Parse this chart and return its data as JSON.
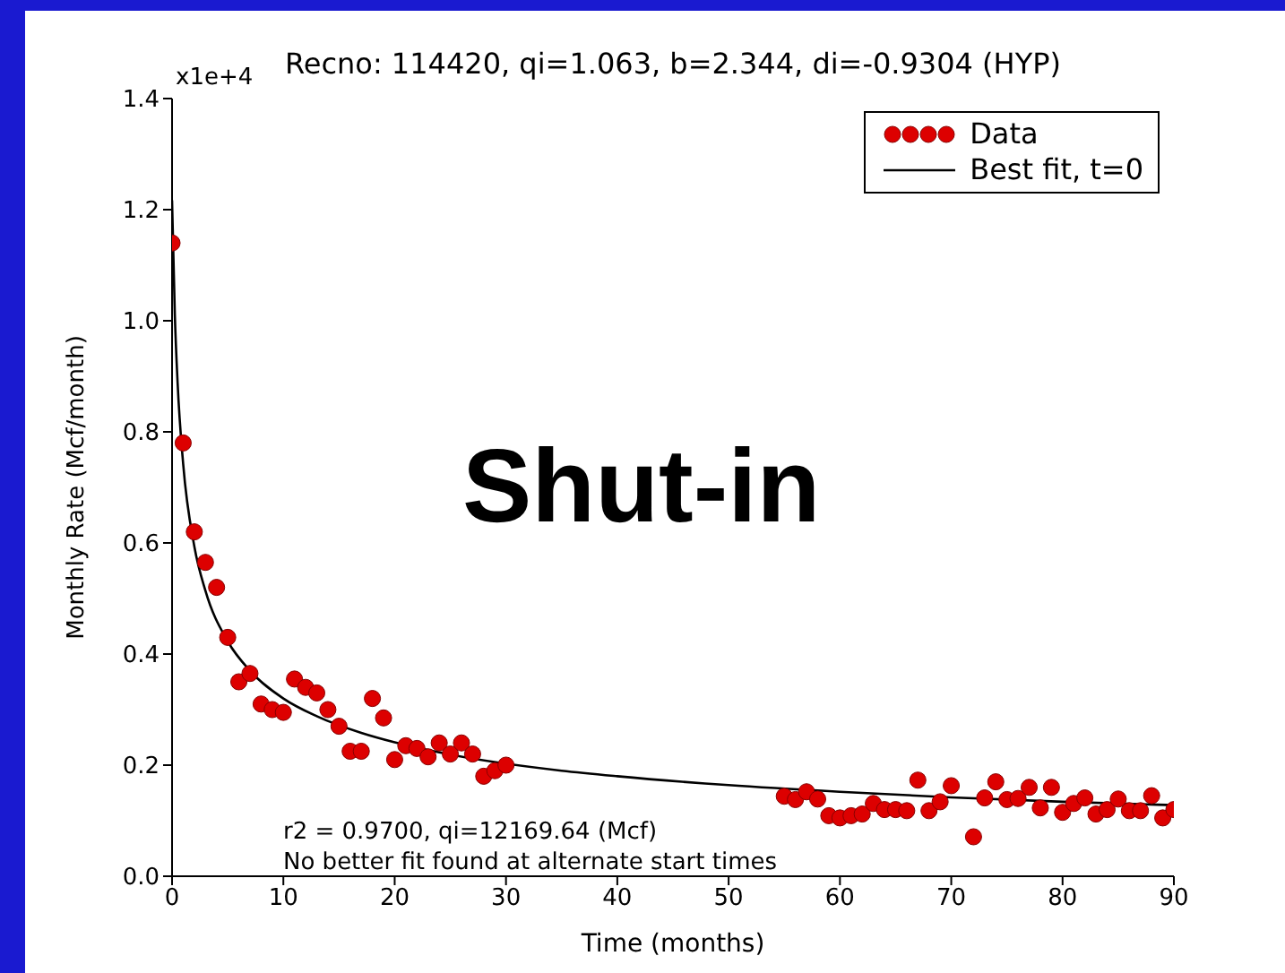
{
  "chart_data": {
    "type": "scatter",
    "title": "Recno: 114420, qi=1.063, b=2.344, di=-0.9304 (HYP)",
    "xlabel": "Time (months)",
    "ylabel": "Monthly Rate (Mcf/month)",
    "xlim": [
      0,
      90
    ],
    "xticks": [
      0,
      10,
      20,
      30,
      40,
      50,
      60,
      70,
      80,
      90
    ],
    "ylim": [
      0,
      1.4
    ],
    "yticks": [
      {
        "value": 0,
        "label": "0.0"
      },
      0.2,
      0.4,
      0.6,
      0.8,
      {
        "value": 1,
        "label": "1.0"
      },
      1.2,
      1.4
    ],
    "grid": false,
    "legend": "top right",
    "annotations": [
      "x1e+4",
      "Shut-in",
      "r2 = 0.9700, qi=12169.64 (Mcf)",
      "No better fit found at alternate start times"
    ],
    "series": [
      {
        "name": "Data",
        "type": "scatter",
        "marker": "circle",
        "color": "#dd0000",
        "x": [
          0,
          1,
          2,
          3,
          4,
          5,
          6,
          7,
          8,
          9,
          10,
          11,
          12,
          13,
          14,
          15,
          16,
          17,
          18,
          19,
          20,
          21,
          22,
          23,
          24,
          25,
          26,
          27,
          28,
          29,
          30,
          55,
          56,
          57,
          58,
          59,
          60,
          61,
          62,
          63,
          64,
          65,
          66,
          67,
          68,
          69,
          70,
          72,
          73,
          74,
          75,
          76,
          77,
          78,
          79,
          80,
          81,
          82,
          83,
          84,
          85,
          86,
          87,
          88,
          89,
          90
        ],
        "values": [
          1.14,
          0.78,
          0.62,
          0.565,
          0.52,
          0.43,
          0.35,
          0.365,
          0.31,
          0.3,
          0.295,
          0.355,
          0.34,
          0.33,
          0.3,
          0.27,
          0.225,
          0.225,
          0.32,
          0.285,
          0.21,
          0.235,
          0.23,
          0.215,
          0.24,
          0.22,
          0.24,
          0.22,
          0.18,
          0.19,
          0.2,
          0.144,
          0.138,
          0.152,
          0.139,
          0.109,
          0.105,
          0.109,
          0.112,
          0.131,
          0.12,
          0.12,
          0.118,
          0.173,
          0.118,
          0.134,
          0.163,
          0.071,
          0.141,
          0.17,
          0.138,
          0.14,
          0.16,
          0.123,
          0.16,
          0.115,
          0.131,
          0.141,
          0.112,
          0.12,
          0.139,
          0.118,
          0.118,
          0.145,
          0.105,
          0.12
        ]
      },
      {
        "name": "Best fit, t=0",
        "type": "line",
        "marker": "none",
        "line_style": "solid",
        "color": "#000000",
        "x": [
          0,
          0.25,
          0.5,
          1,
          2,
          3,
          5,
          7,
          10,
          13,
          17,
          20,
          25,
          35,
          40,
          50,
          60,
          70,
          80,
          90
        ],
        "values": [
          1.217,
          1.011,
          0.888,
          0.742,
          0.594,
          0.514,
          0.423,
          0.37,
          0.32,
          0.288,
          0.258,
          0.241,
          0.219,
          0.19,
          0.18,
          0.164,
          0.152,
          0.142,
          0.134,
          0.128
        ]
      }
    ]
  }
}
